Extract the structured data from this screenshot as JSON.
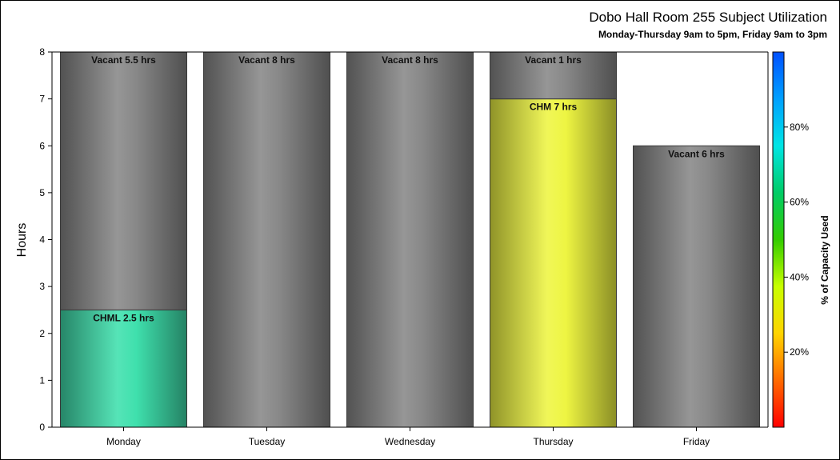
{
  "chart_data": {
    "type": "bar",
    "title": "Dobo Hall Room 255 Subject Utilization",
    "subtitle": "Monday-Thursday 9am to 5pm, Friday 9am to 3pm",
    "ylabel": "Hours",
    "xlabel": "",
    "ylim": [
      0,
      8
    ],
    "yticks": [
      "0",
      "1",
      "2",
      "3",
      "4",
      "5",
      "6",
      "7",
      "8"
    ],
    "categories": [
      "Monday",
      "Tuesday",
      "Wednesday",
      "Thursday",
      "Friday"
    ],
    "stacked": true,
    "bars": [
      {
        "category": "Monday",
        "segments": [
          {
            "label": "CHML 2.5 hrs",
            "value": 2.5,
            "color": "#3fe0ad"
          },
          {
            "label": "Vacant 5.5 hrs",
            "value": 5.5,
            "color": "#888888"
          }
        ]
      },
      {
        "category": "Tuesday",
        "segments": [
          {
            "label": "Vacant 8 hrs",
            "value": 8,
            "color": "#888888"
          }
        ]
      },
      {
        "category": "Wednesday",
        "segments": [
          {
            "label": "Vacant 8 hrs",
            "value": 8,
            "color": "#888888"
          }
        ]
      },
      {
        "category": "Thursday",
        "segments": [
          {
            "label": "CHM 7 hrs",
            "value": 7,
            "color": "#eef542"
          },
          {
            "label": "Vacant 1 hrs",
            "value": 1,
            "color": "#888888"
          }
        ]
      },
      {
        "category": "Friday",
        "segments": [
          {
            "label": "Vacant 6 hrs",
            "value": 6,
            "color": "#888888"
          }
        ]
      }
    ],
    "colorbar": {
      "label": "% of Capacity Used",
      "range": [
        0,
        100
      ],
      "ticks": [
        "20%",
        "40%",
        "60%",
        "80%"
      ],
      "tick_values": [
        20,
        40,
        60,
        80
      ],
      "colors": [
        "#ff0000",
        "#ff6a00",
        "#ffd400",
        "#c8ff00",
        "#33cc00",
        "#00cc66",
        "#00e5e5",
        "#00a0ff",
        "#0050ff"
      ]
    },
    "grid": false,
    "legend": "colorbar right"
  }
}
